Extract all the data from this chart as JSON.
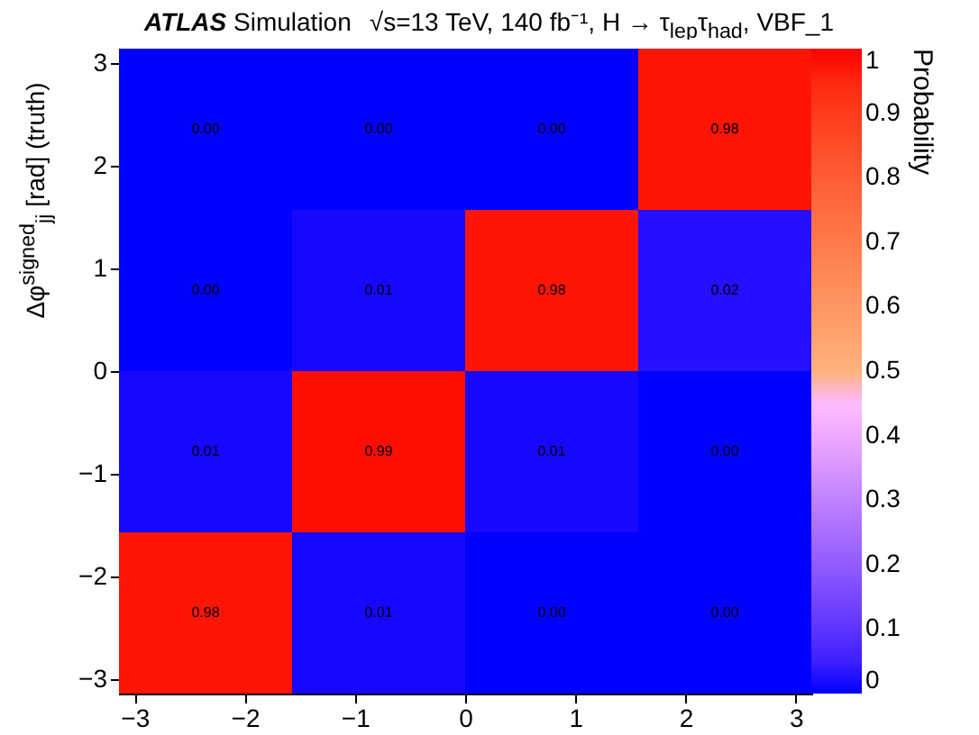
{
  "chart_data": {
    "type": "heatmap",
    "title": "ATLAS Simulation",
    "subtitle": "√s=13 TeV, 140 fb⁻¹, H → τ$_{lep}$τ$_{had}$, VBF_1",
    "ylabel": "Δφ$^{signed}$$_{jj}$ [rad] (truth)",
    "clabel": "Probability",
    "xlim": [
      -3.1416,
      3.1416
    ],
    "ylim": [
      -3.1416,
      3.1416
    ],
    "xticks": [
      -3,
      -2,
      -1,
      0,
      1,
      2,
      3
    ],
    "yticks": [
      -3,
      -2,
      -1,
      0,
      1,
      2,
      3
    ],
    "cells": [
      [
        0,
        0,
        0,
        0.98
      ],
      [
        0,
        0.01,
        0.98,
        0.02
      ],
      [
        0.01,
        0.99,
        0.01,
        0
      ],
      [
        0.98,
        0.01,
        0,
        0
      ]
    ],
    "cell_labels": [
      [
        "0.00",
        "0.00",
        "0.00",
        "0.98"
      ],
      [
        "0.00",
        "0.01",
        "0.98",
        "0.02"
      ],
      [
        "0.01",
        "0.99",
        "0.01",
        "0.00"
      ],
      [
        "0.98",
        "0.01",
        "0.00",
        "0.00"
      ]
    ],
    "clim": [
      0,
      1
    ],
    "cticks": [
      0,
      0.1,
      0.2,
      0.3,
      0.4,
      0.5,
      0.6,
      0.7,
      0.8,
      0.9,
      1
    ]
  }
}
